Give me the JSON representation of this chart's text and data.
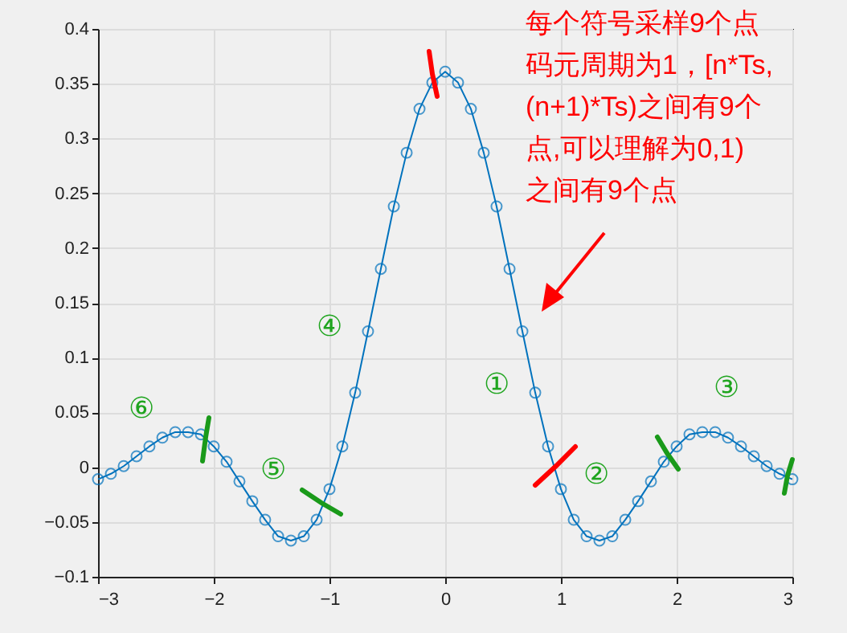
{
  "chart_data": {
    "type": "line",
    "x": [
      -3,
      -2.889,
      -2.778,
      -2.667,
      -2.556,
      -2.444,
      -2.333,
      -2.222,
      -2.111,
      -2,
      -1.889,
      -1.778,
      -1.667,
      -1.556,
      -1.444,
      -1.333,
      -1.222,
      -1.111,
      -1,
      -0.889,
      -0.778,
      -0.667,
      -0.556,
      -0.444,
      -0.333,
      -0.222,
      -0.111,
      0,
      0.111,
      0.222,
      0.333,
      0.444,
      0.556,
      0.667,
      0.778,
      0.889,
      1,
      1.111,
      1.222,
      1.333,
      1.444,
      1.556,
      1.667,
      1.778,
      1.889,
      2,
      2.111,
      2.222,
      2.333,
      2.444,
      2.556,
      2.667,
      2.778,
      2.889,
      3
    ],
    "series": [
      {
        "color": "#0072bd",
        "values": [
          -0.011,
          -0.006,
          0.001,
          0.01,
          0.019,
          0.027,
          0.032,
          0.032,
          0.03,
          0.019,
          0.005,
          -0.013,
          -0.031,
          -0.048,
          -0.063,
          -0.067,
          -0.063,
          -0.048,
          -0.02,
          0.019,
          0.068,
          0.124,
          0.181,
          0.238,
          0.287,
          0.327,
          0.351,
          0.361,
          0.351,
          0.327,
          0.287,
          0.238,
          0.181,
          0.124,
          0.068,
          0.019,
          -0.02,
          -0.048,
          -0.063,
          -0.067,
          -0.063,
          -0.048,
          -0.031,
          -0.013,
          0.005,
          0.019,
          0.03,
          0.032,
          0.032,
          0.027,
          0.019,
          0.01,
          0.001,
          -0.006,
          -0.011
        ]
      }
    ],
    "xlim": [
      -3,
      3
    ],
    "ylim": [
      -0.1,
      0.4
    ],
    "xticks": [
      -3,
      -2,
      -1,
      0,
      1,
      2,
      3
    ],
    "yticks": [
      -0.1,
      -0.05,
      0,
      0.05,
      0.1,
      0.15,
      0.2,
      0.25,
      0.3,
      0.35,
      0.4
    ],
    "grid": true,
    "marker": "circle",
    "line_style": "solid",
    "annotations": [
      "每个符号采样9个点",
      "码元周期为1，[n*Ts,",
      "(n+1)*Ts)之间有9个",
      "点,可以理解为0,1)",
      "之间有9个点",
      "①",
      "②",
      "③",
      "④",
      "⑤",
      "⑥"
    ]
  }
}
